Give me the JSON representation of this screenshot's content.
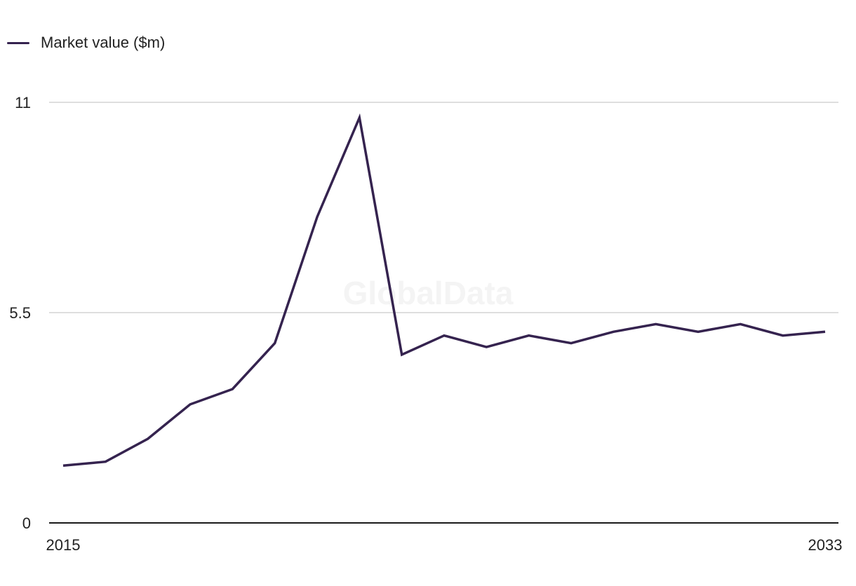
{
  "legend": {
    "label": "Market value ($m)"
  },
  "watermark": "GlobalData",
  "colors": {
    "line": "#35234f",
    "grid": "#d4d4d4",
    "axis": "#1a1a1a"
  },
  "chart_data": {
    "type": "line",
    "title": "",
    "xlabel": "",
    "ylabel": "",
    "legend_position": "top-left",
    "grid": true,
    "ylim": [
      0,
      11
    ],
    "yticks": [
      0,
      5.5,
      11
    ],
    "ytick_labels": [
      "0",
      "5.5",
      "11"
    ],
    "xlim": [
      2015,
      2033
    ],
    "xtick_labels": [
      "2015",
      "2033"
    ],
    "x": [
      2015,
      2016,
      2017,
      2018,
      2019,
      2020,
      2021,
      2022,
      2023,
      2024,
      2025,
      2026,
      2027,
      2028,
      2029,
      2030,
      2031,
      2032,
      2033
    ],
    "series": [
      {
        "name": "Market value ($m)",
        "values": [
          1.5,
          1.6,
          2.2,
          3.1,
          3.5,
          4.7,
          8.0,
          10.6,
          4.4,
          4.9,
          4.6,
          4.9,
          4.7,
          5.0,
          5.2,
          5.0,
          5.2,
          4.9,
          5.0
        ]
      }
    ]
  }
}
